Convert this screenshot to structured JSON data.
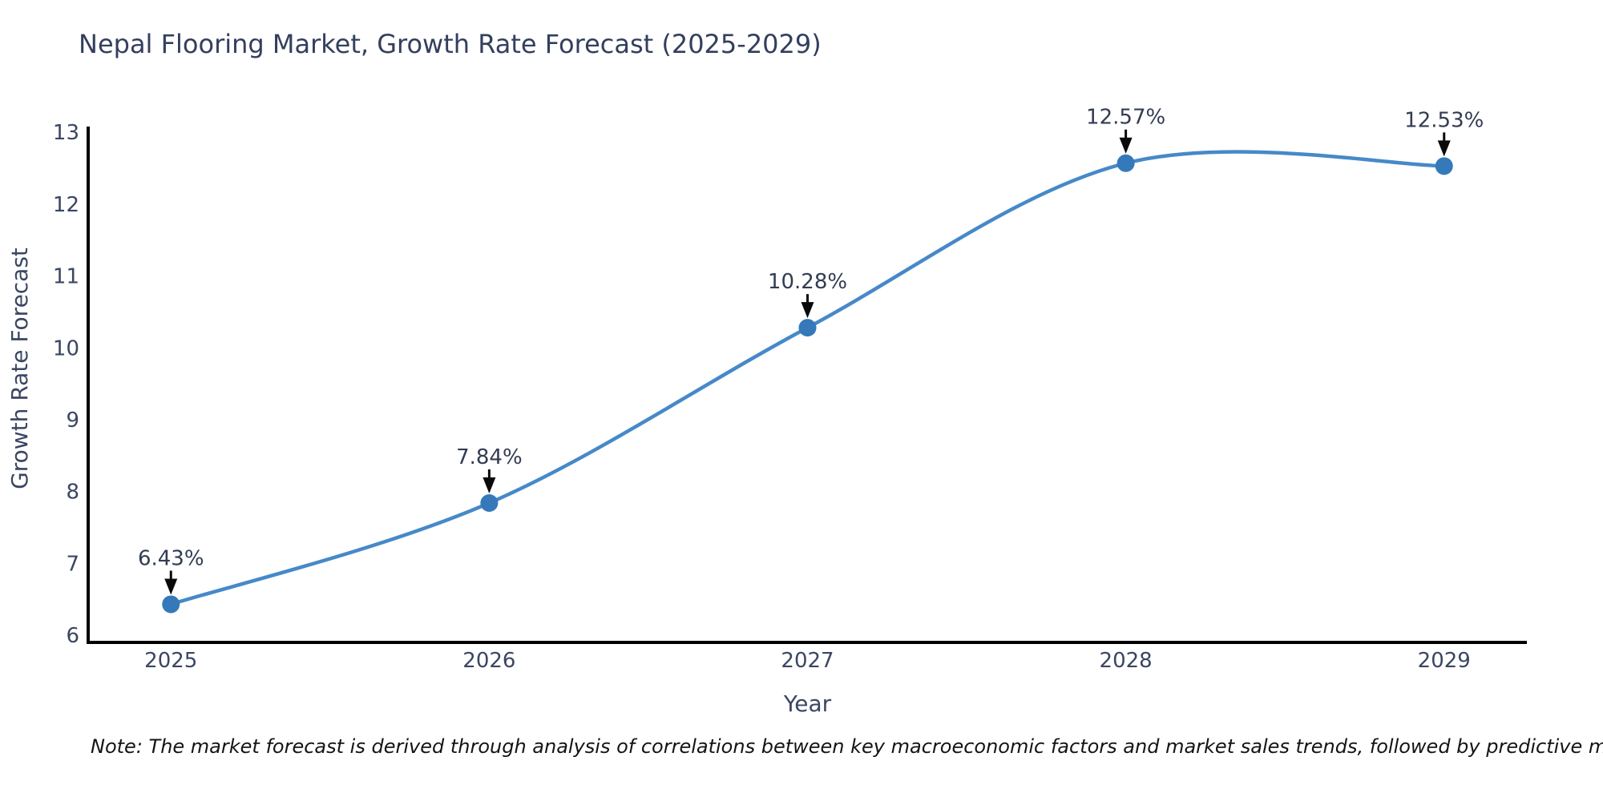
{
  "title": "Nepal Flooring Market, Growth Rate Forecast (2025-2029)",
  "note": "Note: The market forecast is derived through analysis of correlations between key macroeconomic factors and market sales trends, followed by predictive modeling to project future sales",
  "colors": {
    "line": "#4689c8",
    "marker": "#3579bb",
    "axis": "#000000",
    "chart_text": "#3a4662",
    "annotation_text": "#323c52",
    "arrow": "#0a0a0a",
    "background": "#ffffff"
  },
  "chart_data": {
    "type": "line",
    "title": "Nepal Flooring Market, Growth Rate Forecast (2025-2029)",
    "x": [
      2025,
      2026,
      2027,
      2028,
      2029
    ],
    "y": [
      6.43,
      7.84,
      10.28,
      12.57,
      12.53
    ],
    "point_labels": [
      "6.43%",
      "7.84%",
      "10.28%",
      "12.57%",
      "12.53%"
    ],
    "xlabel": "Year",
    "ylabel": "Growth Rate Forecast",
    "xtick_labels": [
      "2025",
      "2026",
      "2027",
      "2028",
      "2029"
    ],
    "ytick_values": [
      6,
      7,
      8,
      9,
      10,
      11,
      12,
      13
    ],
    "xlim": [
      2024.74,
      2029.26
    ],
    "ylim": [
      5.9,
      13.08
    ],
    "grid": false,
    "legend": "none",
    "line_shape": "spline",
    "marker": "circle"
  }
}
